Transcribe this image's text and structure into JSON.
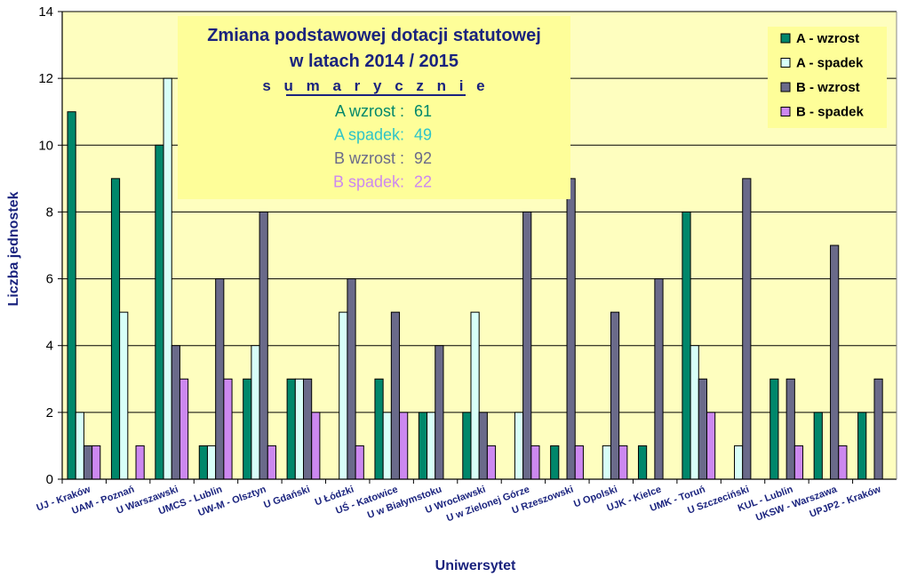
{
  "chart_data": {
    "type": "bar",
    "title": "Zmiana podstawowej dotacji statutowej",
    "title_line2": "w latach 2014 / 2015",
    "subtitle": "s u m a r y c z n i e",
    "summary": [
      {
        "label": "A wzrost :",
        "value": "61",
        "color": "#00876b"
      },
      {
        "label": "A spadek:",
        "value": "49",
        "color": "#2ec4c8"
      },
      {
        "label": "B wzrost :",
        "value": "92",
        "color": "#6a6a8a"
      },
      {
        "label": "B spadek:",
        "value": "22",
        "color": "#cc88f0"
      }
    ],
    "xlabel": "Uniwersytet",
    "ylabel": "Liczba jednostek",
    "ylim": [
      0,
      14
    ],
    "yticks": [
      0,
      2,
      4,
      6,
      8,
      10,
      12,
      14
    ],
    "grid": true,
    "legend_position": "top-right",
    "categories": [
      "UJ - Kraków",
      "UAM - Poznań",
      "U Warszawski",
      "UMCS - Lublin",
      "UW-M - Olsztyn",
      "U Gdański",
      "U Łódzki",
      "UŚ - Katowice",
      "U w Białymstoku",
      "U Wrocławski",
      "U w Zielonej Górze",
      "U Rzeszowski",
      "U Opolski",
      "UJK - Kielce",
      "UMK - Toruń",
      "U Szczeciński",
      "KUL - Lublin",
      "UKSW - Warszawa",
      "UPJP2 - Kraków"
    ],
    "series": [
      {
        "name": "A - wzrost",
        "color": "#00876b",
        "values": [
          11,
          9,
          10,
          1,
          3,
          3,
          0,
          3,
          2,
          2,
          0,
          1,
          0,
          1,
          8,
          0,
          3,
          2,
          2
        ]
      },
      {
        "name": "A - spadek",
        "color": "#d8fff8",
        "values": [
          2,
          5,
          12,
          1,
          4,
          3,
          5,
          2,
          2,
          5,
          2,
          0,
          1,
          0,
          4,
          1,
          0,
          0,
          0
        ]
      },
      {
        "name": "B - wzrost",
        "color": "#6a6a8a",
        "values": [
          1,
          0,
          4,
          6,
          8,
          3,
          6,
          5,
          4,
          2,
          8,
          9,
          5,
          6,
          3,
          9,
          3,
          7,
          3
        ]
      },
      {
        "name": "B - spadek",
        "color": "#cc88f0",
        "values": [
          1,
          1,
          3,
          3,
          1,
          2,
          1,
          2,
          0,
          1,
          1,
          1,
          1,
          0,
          2,
          0,
          1,
          1,
          0
        ]
      }
    ],
    "colors": {
      "plot_background": "#fefebf",
      "title_box": "#fefe99"
    }
  }
}
